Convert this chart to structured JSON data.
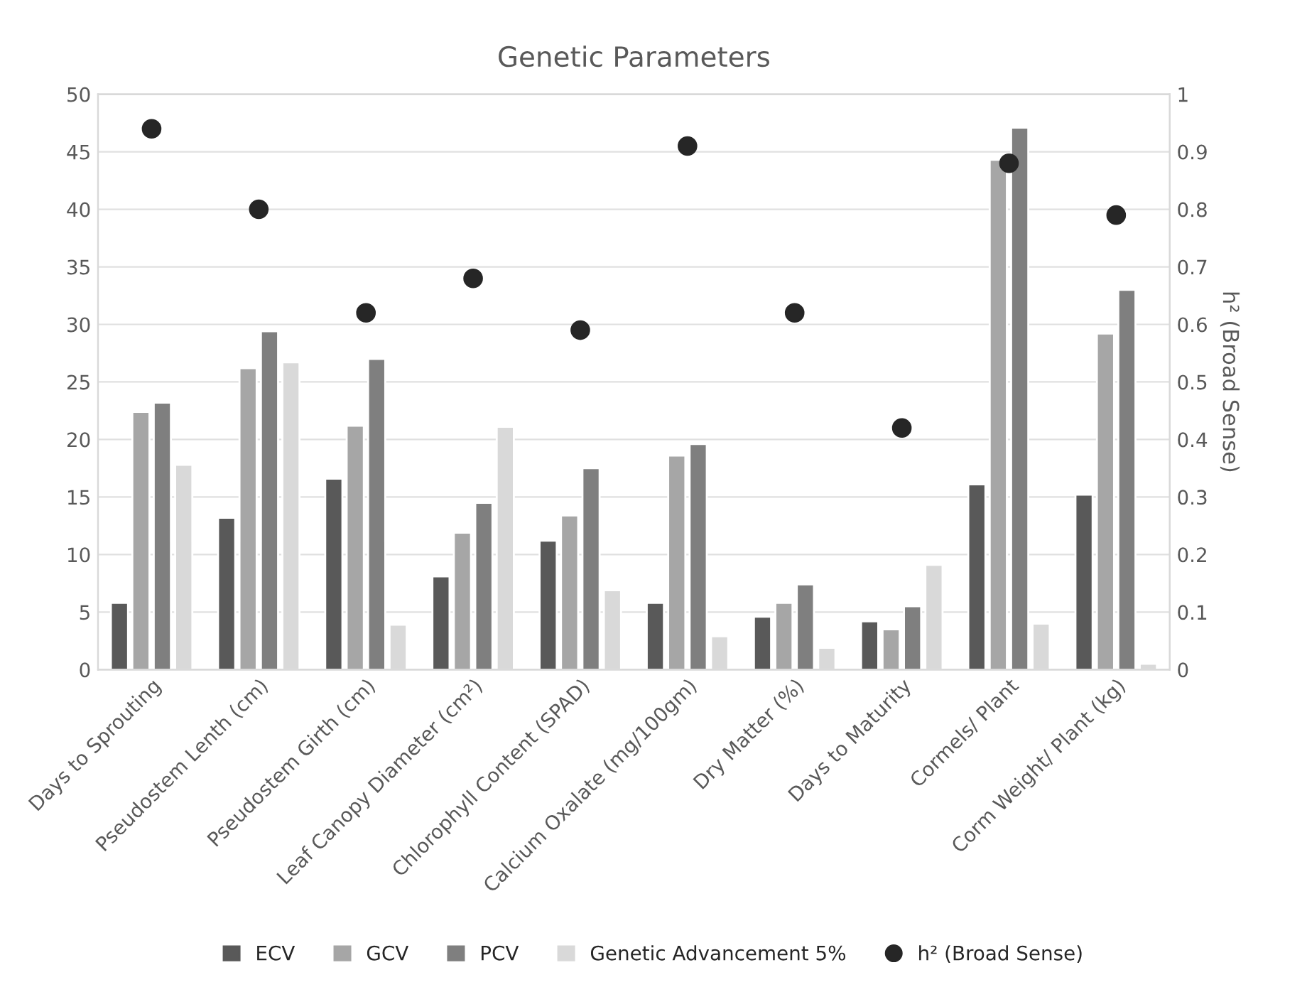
{
  "chart_data": {
    "type": "bar",
    "title": "Genetic Parameters",
    "y2label": "h² (Broad Sense)",
    "categories": [
      "Days to Sprouting",
      "Pseudostem Lenth (cm)",
      "Pseudostem Girth (cm)",
      "Leaf Canopy Diameter (cm²)",
      "Chlorophyll Content (SPAD)",
      "Calcium Oxalate (mg/100gm)",
      "Dry Matter (%)",
      "Days to Maturity",
      "Cormels/ Plant",
      "Corm Weight/ Plant (kg)"
    ],
    "series": [
      {
        "name": "ECV",
        "color": "#595959",
        "values": [
          5.8,
          13.2,
          16.6,
          8.1,
          11.2,
          5.8,
          4.6,
          4.2,
          16.1,
          15.2
        ]
      },
      {
        "name": "GCV",
        "color": "#a6a6a6",
        "values": [
          22.4,
          26.2,
          21.2,
          11.9,
          13.4,
          18.6,
          5.8,
          3.5,
          44.3,
          29.2
        ]
      },
      {
        "name": "PCV",
        "color": "#7f7f7f",
        "values": [
          23.2,
          29.4,
          27.0,
          14.5,
          17.5,
          19.6,
          7.4,
          5.5,
          47.1,
          33.0
        ]
      },
      {
        "name": "Genetic Advancement 5%",
        "color": "#d9d9d9",
        "values": [
          17.8,
          26.7,
          3.9,
          21.1,
          6.9,
          2.9,
          1.9,
          9.1,
          4.0,
          0.5
        ]
      },
      {
        "name": "h² (Broad Sense)",
        "color": "#262626",
        "type": "scatter",
        "axis": "y2",
        "marker": "circle",
        "values": [
          0.94,
          0.8,
          0.62,
          0.68,
          0.59,
          0.91,
          0.62,
          0.42,
          0.88,
          0.79
        ]
      }
    ],
    "ylim": [
      0,
      50
    ],
    "yticks": [
      0,
      5,
      10,
      15,
      20,
      25,
      30,
      35,
      40,
      45,
      50
    ],
    "y2lim": [
      0,
      1
    ],
    "y2ticks": [
      0,
      0.1,
      0.2,
      0.3,
      0.4,
      0.5,
      0.6,
      0.7,
      0.8,
      0.9,
      1
    ],
    "grid": "y",
    "legend": "bottom"
  }
}
